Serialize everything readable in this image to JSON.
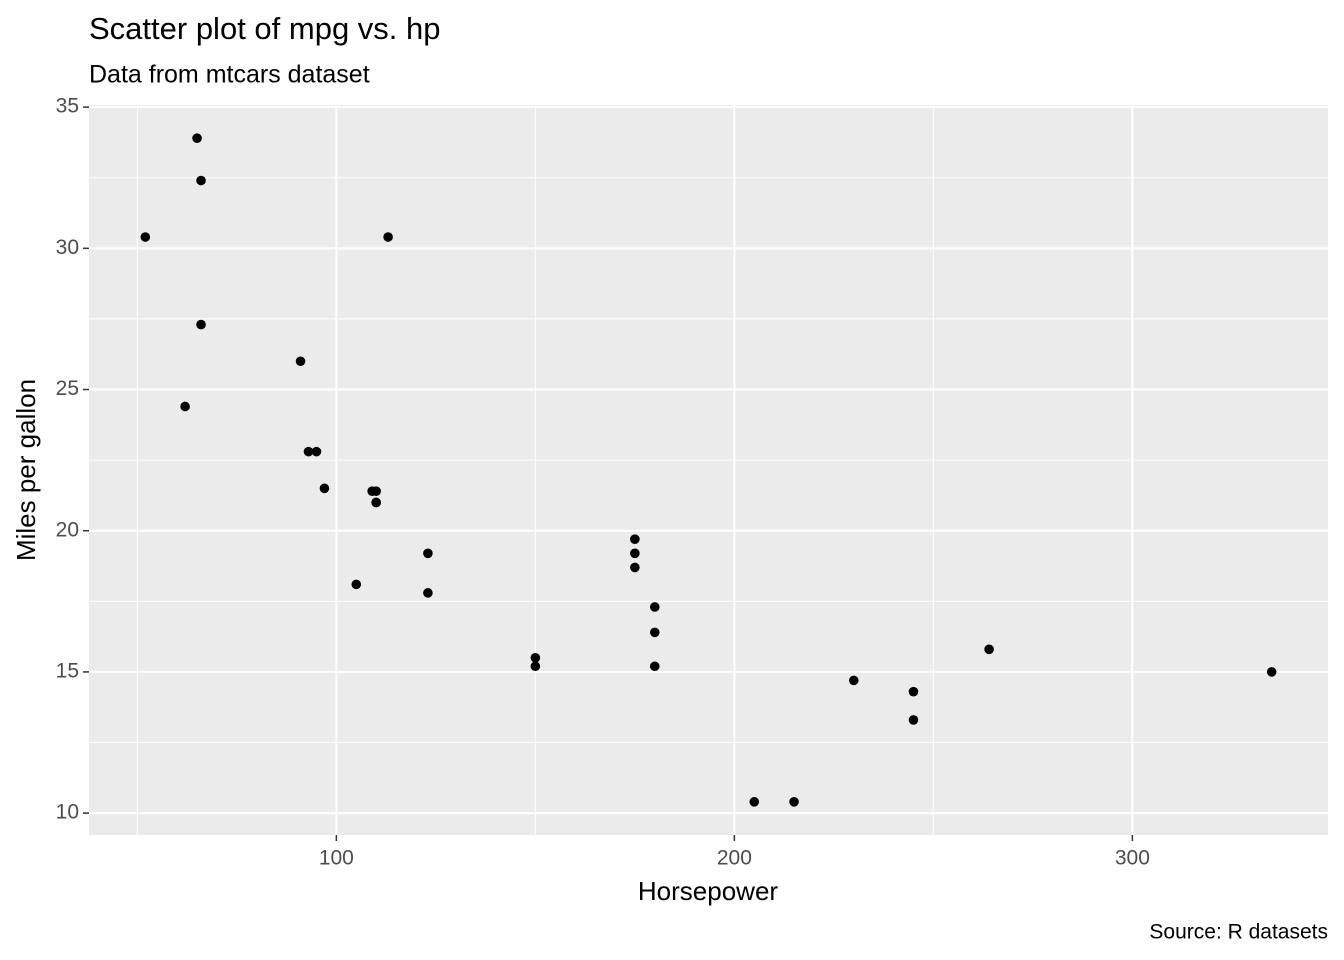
{
  "chart_data": {
    "type": "scatter",
    "title": "Scatter plot of mpg vs. hp",
    "subtitle": "Data from mtcars dataset",
    "x_label": "Horsepower",
    "y_label": "Miles per gallon",
    "caption": "Source: R datasets",
    "color": "#000000",
    "x": [
      110,
      110,
      93,
      110,
      175,
      105,
      245,
      62,
      95,
      123,
      123,
      180,
      180,
      180,
      205,
      215,
      230,
      66,
      52,
      65,
      97,
      150,
      150,
      245,
      175,
      66,
      91,
      113,
      264,
      175,
      335,
      109
    ],
    "values": [
      21.0,
      21.0,
      22.8,
      21.4,
      18.7,
      18.1,
      14.3,
      24.4,
      22.8,
      19.2,
      17.8,
      16.4,
      17.3,
      15.2,
      10.4,
      10.4,
      14.7,
      32.4,
      30.4,
      33.9,
      21.5,
      15.5,
      15.2,
      13.3,
      19.2,
      27.3,
      26.0,
      30.4,
      15.8,
      19.7,
      15.0,
      21.4
    ],
    "xlim": [
      37.85,
      349.15
    ],
    "ylim": [
      9.225,
      35.075
    ],
    "xticks": [
      100,
      200,
      300
    ],
    "yticks": [
      10,
      15,
      20,
      25,
      30,
      35
    ],
    "xminor": [
      50,
      150,
      250
    ],
    "yminor": [
      12.5,
      17.5,
      22.5,
      27.5,
      32.5
    ],
    "grid": true
  }
}
